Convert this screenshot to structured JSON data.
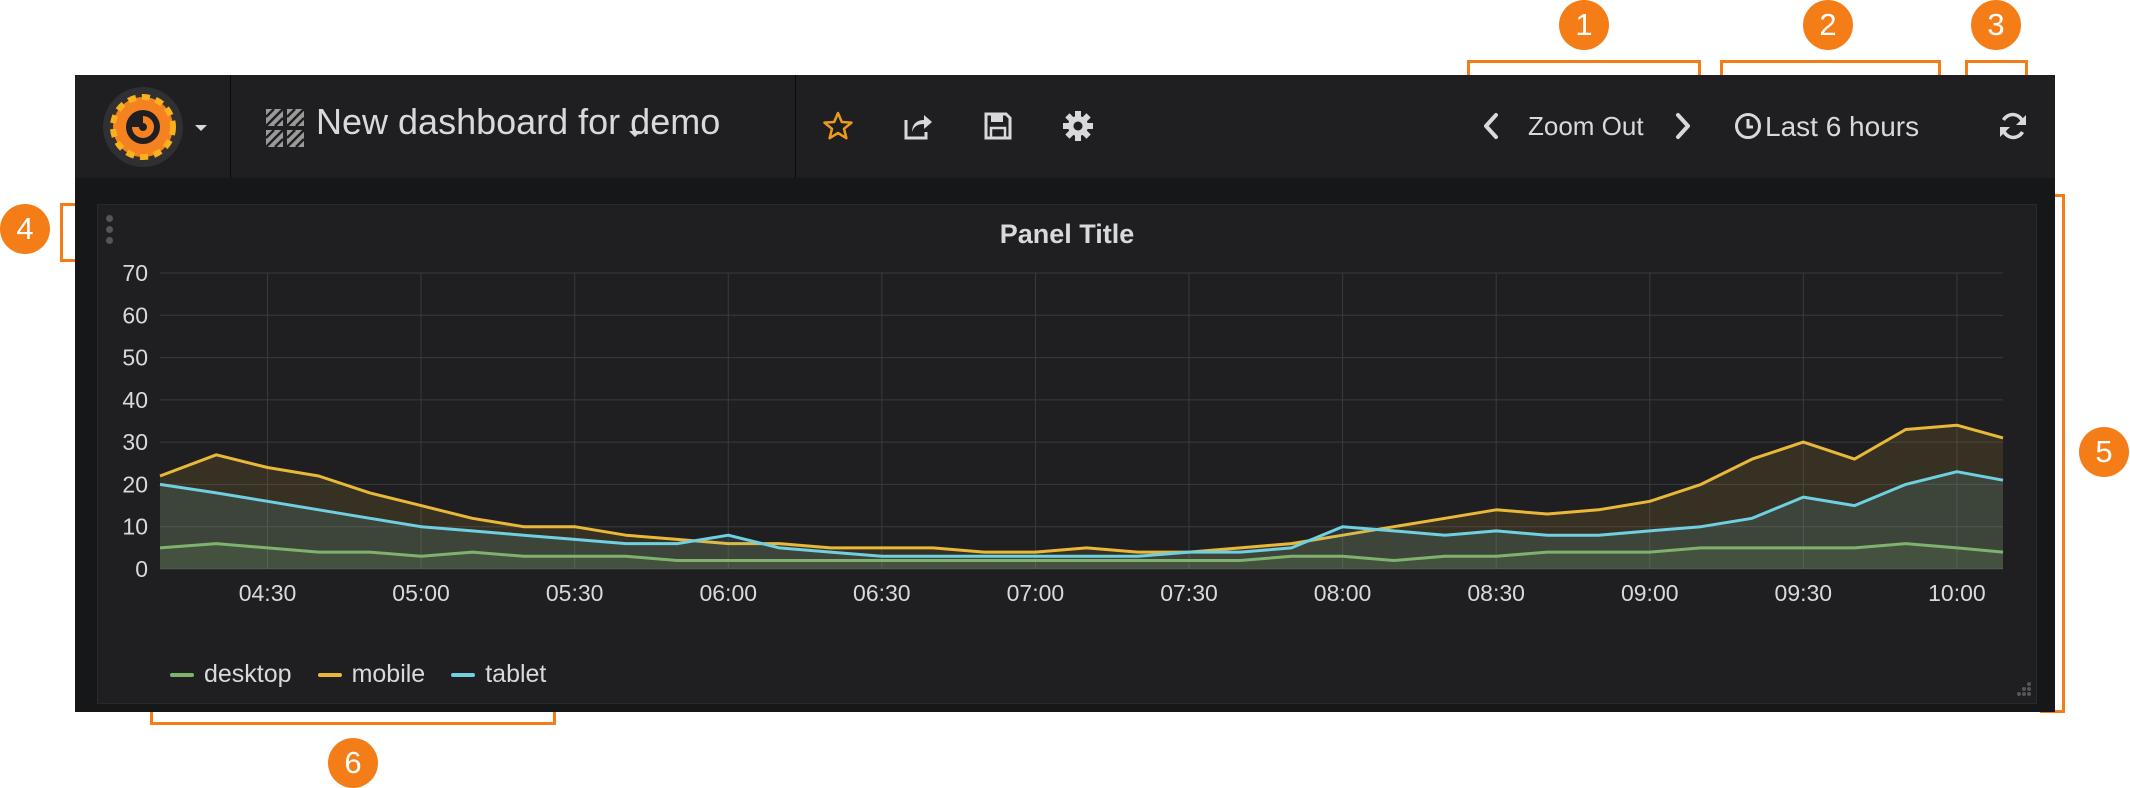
{
  "navbar": {
    "dashboard_title": "New dashboard for demo",
    "zoom_out_label": "Zoom Out",
    "time_range_label": "Last 6 hours",
    "icons": [
      "grafana-logo",
      "dashboard-grid-icon",
      "star-icon",
      "share-icon",
      "save-icon",
      "gear-icon",
      "chevron-left-icon",
      "chevron-right-icon",
      "clock-icon",
      "refresh-icon"
    ]
  },
  "annotations": [
    "1",
    "2",
    "3",
    "4",
    "5",
    "6"
  ],
  "panel": {
    "title": "Panel Title"
  },
  "colors": {
    "desktop": "#7eb26d",
    "mobile": "#eab839",
    "tablet": "#6ed0e0",
    "annotation": "#f57d18"
  },
  "chart_data": {
    "type": "line",
    "title": "Panel Title",
    "x_tick_labels": [
      "04:30",
      "05:00",
      "05:30",
      "06:00",
      "06:30",
      "07:00",
      "07:30",
      "08:00",
      "08:30",
      "09:00",
      "09:30",
      "10:00"
    ],
    "y_ticks": [
      0,
      10,
      20,
      30,
      40,
      50,
      60,
      70
    ],
    "ylim": [
      0,
      70
    ],
    "grid": true,
    "legend": "bottom-left",
    "x": [
      "04:09",
      "04:20",
      "04:30",
      "04:40",
      "04:50",
      "05:00",
      "05:10",
      "05:20",
      "05:30",
      "05:40",
      "05:50",
      "06:00",
      "06:10",
      "06:20",
      "06:30",
      "06:40",
      "06:50",
      "07:00",
      "07:10",
      "07:20",
      "07:30",
      "07:40",
      "07:50",
      "08:00",
      "08:10",
      "08:20",
      "08:30",
      "08:40",
      "08:50",
      "09:00",
      "09:10",
      "09:20",
      "09:30",
      "09:40",
      "09:50",
      "10:00",
      "10:09"
    ],
    "series": [
      {
        "name": "desktop",
        "values": [
          5,
          6,
          5,
          4,
          4,
          3,
          4,
          3,
          3,
          3,
          2,
          2,
          2,
          2,
          2,
          2,
          2,
          2,
          2,
          2,
          2,
          2,
          3,
          3,
          2,
          3,
          3,
          4,
          4,
          4,
          5,
          5,
          5,
          5,
          6,
          5,
          4
        ]
      },
      {
        "name": "mobile",
        "values": [
          22,
          27,
          24,
          22,
          18,
          15,
          12,
          10,
          10,
          8,
          7,
          6,
          6,
          5,
          5,
          5,
          4,
          4,
          5,
          4,
          4,
          5,
          6,
          8,
          10,
          12,
          14,
          13,
          14,
          16,
          20,
          26,
          30,
          26,
          33,
          34,
          31
        ]
      },
      {
        "name": "tablet",
        "values": [
          20,
          18,
          16,
          14,
          12,
          10,
          9,
          8,
          7,
          6,
          6,
          8,
          5,
          4,
          3,
          3,
          3,
          3,
          3,
          3,
          4,
          4,
          5,
          10,
          9,
          8,
          9,
          8,
          8,
          9,
          10,
          12,
          17,
          15,
          20,
          23,
          21
        ]
      }
    ]
  }
}
